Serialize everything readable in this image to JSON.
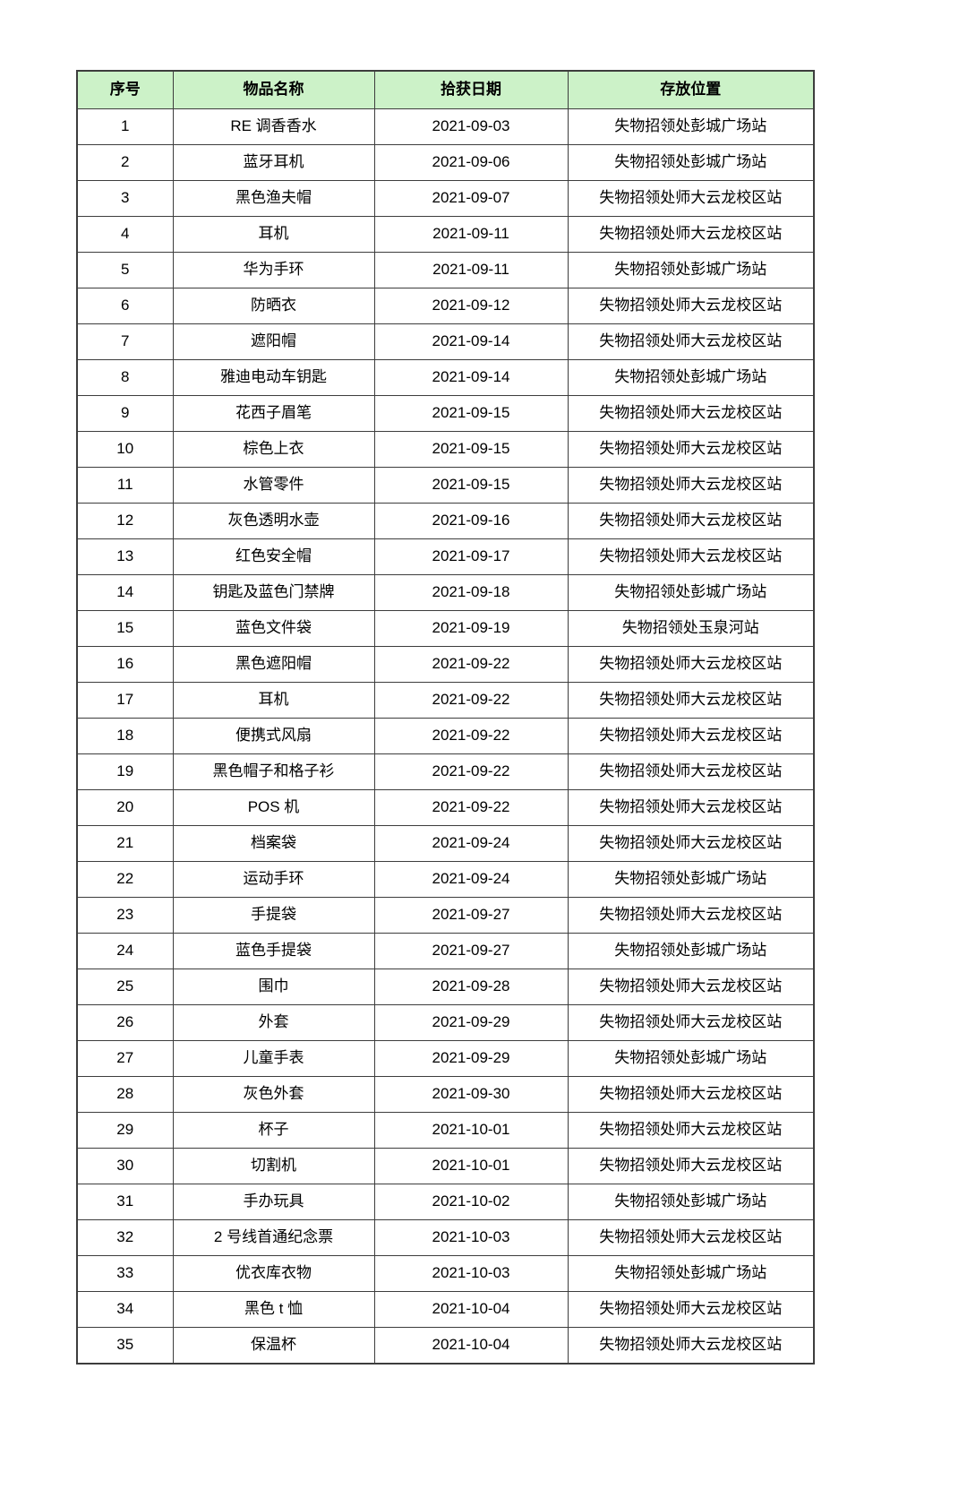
{
  "colors": {
    "header_bg": "#ccf2c8",
    "border": "#3d3d3d"
  },
  "table": {
    "columns": [
      {
        "key": "index",
        "label": "序号"
      },
      {
        "key": "name",
        "label": "物品名称"
      },
      {
        "key": "date",
        "label": "拾获日期"
      },
      {
        "key": "location",
        "label": "存放位置"
      }
    ],
    "rows": [
      [
        "1",
        "RE 调香香水",
        "2021-09-03",
        "失物招领处彭城广场站"
      ],
      [
        "2",
        "蓝牙耳机",
        "2021-09-06",
        "失物招领处彭城广场站"
      ],
      [
        "3",
        "黑色渔夫帽",
        "2021-09-07",
        "失物招领处师大云龙校区站"
      ],
      [
        "4",
        "耳机",
        "2021-09-11",
        "失物招领处师大云龙校区站"
      ],
      [
        "5",
        "华为手环",
        "2021-09-11",
        "失物招领处彭城广场站"
      ],
      [
        "6",
        "防晒衣",
        "2021-09-12",
        "失物招领处师大云龙校区站"
      ],
      [
        "7",
        "遮阳帽",
        "2021-09-14",
        "失物招领处师大云龙校区站"
      ],
      [
        "8",
        "雅迪电动车钥匙",
        "2021-09-14",
        "失物招领处彭城广场站"
      ],
      [
        "9",
        "花西子眉笔",
        "2021-09-15",
        "失物招领处师大云龙校区站"
      ],
      [
        "10",
        "棕色上衣",
        "2021-09-15",
        "失物招领处师大云龙校区站"
      ],
      [
        "11",
        "水管零件",
        "2021-09-15",
        "失物招领处师大云龙校区站"
      ],
      [
        "12",
        "灰色透明水壶",
        "2021-09-16",
        "失物招领处师大云龙校区站"
      ],
      [
        "13",
        "红色安全帽",
        "2021-09-17",
        "失物招领处师大云龙校区站"
      ],
      [
        "14",
        "钥匙及蓝色门禁牌",
        "2021-09-18",
        "失物招领处彭城广场站"
      ],
      [
        "15",
        "蓝色文件袋",
        "2021-09-19",
        "失物招领处玉泉河站"
      ],
      [
        "16",
        "黑色遮阳帽",
        "2021-09-22",
        "失物招领处师大云龙校区站"
      ],
      [
        "17",
        "耳机",
        "2021-09-22",
        "失物招领处师大云龙校区站"
      ],
      [
        "18",
        "便携式风扇",
        "2021-09-22",
        "失物招领处师大云龙校区站"
      ],
      [
        "19",
        "黑色帽子和格子衫",
        "2021-09-22",
        "失物招领处师大云龙校区站"
      ],
      [
        "20",
        "POS 机",
        "2021-09-22",
        "失物招领处师大云龙校区站"
      ],
      [
        "21",
        "档案袋",
        "2021-09-24",
        "失物招领处师大云龙校区站"
      ],
      [
        "22",
        "运动手环",
        "2021-09-24",
        "失物招领处彭城广场站"
      ],
      [
        "23",
        "手提袋",
        "2021-09-27",
        "失物招领处师大云龙校区站"
      ],
      [
        "24",
        "蓝色手提袋",
        "2021-09-27",
        "失物招领处彭城广场站"
      ],
      [
        "25",
        "围巾",
        "2021-09-28",
        "失物招领处师大云龙校区站"
      ],
      [
        "26",
        "外套",
        "2021-09-29",
        "失物招领处师大云龙校区站"
      ],
      [
        "27",
        "儿童手表",
        "2021-09-29",
        "失物招领处彭城广场站"
      ],
      [
        "28",
        "灰色外套",
        "2021-09-30",
        "失物招领处师大云龙校区站"
      ],
      [
        "29",
        "杯子",
        "2021-10-01",
        "失物招领处师大云龙校区站"
      ],
      [
        "30",
        "切割机",
        "2021-10-01",
        "失物招领处师大云龙校区站"
      ],
      [
        "31",
        "手办玩具",
        "2021-10-02",
        "失物招领处彭城广场站"
      ],
      [
        "32",
        "2 号线首通纪念票",
        "2021-10-03",
        "失物招领处师大云龙校区站"
      ],
      [
        "33",
        "优衣库衣物",
        "2021-10-03",
        "失物招领处彭城广场站"
      ],
      [
        "34",
        "黑色 t 恤",
        "2021-10-04",
        "失物招领处师大云龙校区站"
      ],
      [
        "35",
        "保温杯",
        "2021-10-04",
        "失物招领处师大云龙校区站"
      ]
    ]
  }
}
